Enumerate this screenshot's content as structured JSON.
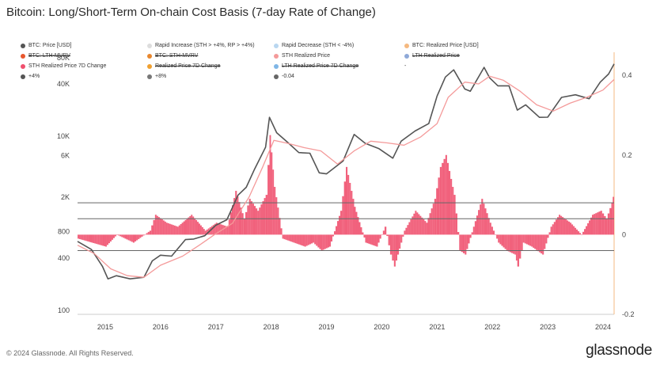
{
  "title": "Bitcoin: Long/Short-Term On-chain Cost Basis (7-day Rate of Change)",
  "legend": [
    {
      "label": "BTC: Price [USD]",
      "color": "#555555",
      "struck": false
    },
    {
      "label": "Rapid Increase (STH > +4%, RP > +4%)",
      "color": "#dddddd",
      "struck": false
    },
    {
      "label": "Rapid Decrease (STH < -4%)",
      "color": "#b9d7f0",
      "struck": false
    },
    {
      "label": "BTC: Realized Price [USD]",
      "color": "#f5b980",
      "struck": false
    },
    {
      "label": "BTC: LTH-MVRV",
      "color": "#e8572e",
      "struck": true
    },
    {
      "label": "BTC: STH-MVRV",
      "color": "#e8872e",
      "struck": true
    },
    {
      "label": "STH Realized Price",
      "color": "#f49a9a",
      "struck": false
    },
    {
      "label": "LTH Realized Price",
      "color": "#8fa9d8",
      "struck": true
    },
    {
      "label": "STH Realized Price 7D Change",
      "color": "#f0506e",
      "struck": false
    },
    {
      "label": "Realized Price 7D Change",
      "color": "#f0a030",
      "struck": true
    },
    {
      "label": "LTH Realized Price 7D Change",
      "color": "#7fb6e6",
      "struck": true
    },
    {
      "label": "-",
      "color": "",
      "struck": false
    },
    {
      "label": "+4%",
      "color": "#555555",
      "struck": false
    },
    {
      "label": "+8%",
      "color": "#777777",
      "struck": false
    },
    {
      "label": "-0.04",
      "color": "#666666",
      "struck": false
    }
  ],
  "footer": "© 2024 Glassnode. All Rights Reserved.",
  "brand": "glassnode",
  "chart_data": {
    "type": "line",
    "log_scale_left": true,
    "x_ticks": [
      "2015",
      "2016",
      "2017",
      "2018",
      "2019",
      "2020",
      "2021",
      "2022",
      "2023",
      "2024"
    ],
    "left_ticks": [
      {
        "label": "100",
        "value": 100
      },
      {
        "label": "400",
        "value": 400
      },
      {
        "label": "800",
        "value": 800
      },
      {
        "label": "2K",
        "value": 2000
      },
      {
        "label": "6K",
        "value": 6000
      },
      {
        "label": "10K",
        "value": 10000
      },
      {
        "label": "40K",
        "value": 40000
      },
      {
        "label": "80K",
        "value": 80000
      }
    ],
    "right_ticks": [
      {
        "label": "0.4",
        "value": 0.4
      },
      {
        "label": "0.2",
        "value": 0.2
      },
      {
        "label": "0",
        "value": 0
      },
      {
        "label": "-0.2",
        "value": -0.2
      }
    ],
    "x_range": [
      2014.5,
      2024.2
    ],
    "left_range": [
      90,
      85000
    ],
    "right_range": [
      -0.2,
      0.45
    ],
    "hlines_right": [
      {
        "name": "+8%",
        "value": 0.08
      },
      {
        "name": "+4%",
        "value": 0.04
      },
      {
        "name": "-0.04",
        "value": -0.04
      }
    ],
    "grid": false,
    "legend_position": "top",
    "series": [
      {
        "name": "BTC: Price [USD]",
        "axis": "left",
        "color": "#555555",
        "x": [
          2014.5,
          2014.75,
          2014.95,
          2015.05,
          2015.2,
          2015.45,
          2015.7,
          2015.85,
          2016.0,
          2016.2,
          2016.45,
          2016.6,
          2016.8,
          2017.0,
          2017.2,
          2017.4,
          2017.55,
          2017.7,
          2017.9,
          2017.97,
          2018.1,
          2018.3,
          2018.5,
          2018.7,
          2018.87,
          2019.0,
          2019.3,
          2019.5,
          2019.7,
          2019.95,
          2020.2,
          2020.35,
          2020.6,
          2020.85,
          2021.0,
          2021.15,
          2021.3,
          2021.5,
          2021.6,
          2021.85,
          2021.95,
          2022.1,
          2022.3,
          2022.45,
          2022.6,
          2022.85,
          2023.0,
          2023.25,
          2023.5,
          2023.75,
          2023.95,
          2024.1,
          2024.2
        ],
        "y": [
          620,
          500,
          320,
          230,
          250,
          230,
          240,
          370,
          430,
          420,
          650,
          660,
          720,
          950,
          1100,
          2100,
          2600,
          4200,
          7500,
          16500,
          11000,
          8500,
          6500,
          6400,
          3800,
          3700,
          5200,
          10500,
          8300,
          7200,
          5600,
          8800,
          11500,
          14000,
          29000,
          48000,
          58000,
          35000,
          33000,
          62000,
          47000,
          38000,
          38000,
          20000,
          23000,
          16500,
          16600,
          28000,
          30000,
          27000,
          42000,
          52000,
          68000
        ]
      },
      {
        "name": "STH Realized Price",
        "axis": "left",
        "color": "#f49a9a",
        "x": [
          2014.5,
          2014.8,
          2015.1,
          2015.4,
          2015.7,
          2016.0,
          2016.4,
          2016.7,
          2017.0,
          2017.3,
          2017.6,
          2017.85,
          2018.05,
          2018.3,
          2018.6,
          2018.9,
          2019.2,
          2019.5,
          2019.8,
          2020.1,
          2020.4,
          2020.7,
          2021.0,
          2021.2,
          2021.5,
          2021.75,
          2021.95,
          2022.2,
          2022.5,
          2022.8,
          2023.1,
          2023.4,
          2023.7,
          2024.0,
          2024.2
        ],
        "y": [
          560,
          450,
          300,
          250,
          240,
          330,
          420,
          560,
          760,
          1000,
          2000,
          4500,
          9000,
          8300,
          7400,
          6800,
          4800,
          6800,
          8800,
          8400,
          7900,
          9800,
          14000,
          28000,
          42000,
          40000,
          49000,
          44000,
          33000,
          23000,
          19500,
          24000,
          28000,
          34000,
          45000
        ]
      }
    ],
    "bars": {
      "name": "STH Realized Price 7D Change",
      "axis": "right",
      "color": "#f0506e",
      "x": [
        2014.5,
        2014.75,
        2015.0,
        2015.2,
        2015.5,
        2015.8,
        2015.9,
        2016.1,
        2016.3,
        2016.55,
        2016.8,
        2017.0,
        2017.2,
        2017.35,
        2017.5,
        2017.6,
        2017.75,
        2017.9,
        2017.97,
        2018.05,
        2018.2,
        2018.4,
        2018.6,
        2018.75,
        2018.9,
        2019.05,
        2019.25,
        2019.35,
        2019.5,
        2019.7,
        2019.9,
        2020.05,
        2020.15,
        2020.22,
        2020.4,
        2020.6,
        2020.8,
        2020.95,
        2021.05,
        2021.15,
        2021.3,
        2021.4,
        2021.5,
        2021.65,
        2021.8,
        2021.95,
        2022.1,
        2022.25,
        2022.4,
        2022.45,
        2022.55,
        2022.7,
        2022.9,
        2023.05,
        2023.2,
        2023.4,
        2023.6,
        2023.8,
        2023.95,
        2024.05,
        2024.15,
        2024.2
      ],
      "values": [
        -0.01,
        -0.02,
        -0.03,
        0.0,
        -0.02,
        0.01,
        0.05,
        0.03,
        0.02,
        0.05,
        0.01,
        0.03,
        0.02,
        0.11,
        0.04,
        0.09,
        0.06,
        0.1,
        0.25,
        0.12,
        -0.01,
        -0.02,
        -0.03,
        -0.02,
        -0.04,
        -0.03,
        0.06,
        0.17,
        0.07,
        -0.02,
        -0.03,
        0.02,
        -0.05,
        -0.08,
        0.01,
        0.06,
        0.03,
        0.09,
        0.17,
        0.2,
        0.1,
        -0.04,
        -0.05,
        0.02,
        0.09,
        0.03,
        -0.02,
        -0.04,
        -0.05,
        -0.08,
        -0.02,
        -0.03,
        -0.05,
        0.02,
        0.05,
        0.03,
        0.0,
        0.05,
        0.06,
        0.04,
        0.08,
        0.11
      ]
    }
  }
}
